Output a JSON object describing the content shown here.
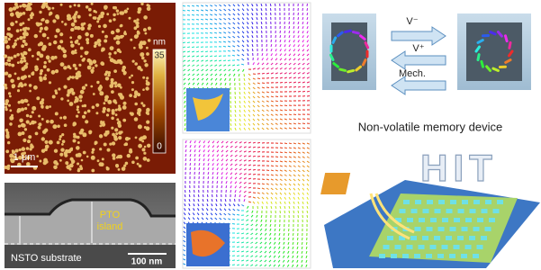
{
  "afm": {
    "colorbar_unit": "nm",
    "colorbar_max": "35",
    "colorbar_min": "0",
    "scale_bar": "1 μm"
  },
  "sem": {
    "label_pto": "PTO",
    "label_island": "island",
    "label_substrate": "NSTO substrate",
    "scale_bar": "100 nm"
  },
  "switching": {
    "arrow_top": "V⁻",
    "arrow_middle": "V⁺",
    "arrow_bottom": "Mech.",
    "caption": "Non-volatile memory device"
  },
  "device": {
    "logo": "HIT"
  }
}
